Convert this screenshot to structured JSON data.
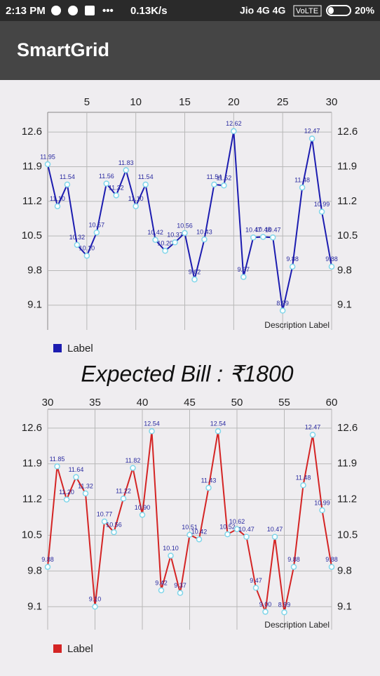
{
  "status_bar": {
    "time": "2:13 PM",
    "speed": "0.13K/s",
    "carrier": "Jio 4G 4G",
    "volte": "VoLTE",
    "battery": "20%"
  },
  "app_bar": {
    "title": "SmartGrid"
  },
  "bill_text": "Expected Bill : ₹1800",
  "chart_data": [
    {
      "type": "line",
      "description": "Description Label",
      "legend": "bottom-left",
      "grid": true,
      "x": [
        1,
        2,
        3,
        4,
        5,
        6,
        7,
        8,
        9,
        10,
        11,
        12,
        13,
        14,
        15,
        16,
        17,
        18,
        19,
        20,
        21,
        22,
        23,
        24,
        25,
        26,
        27,
        28,
        29,
        30
      ],
      "xlim": [
        1,
        30
      ],
      "xticks": [
        5,
        10,
        15,
        20,
        25,
        30
      ],
      "ylim": [
        8.6,
        13.0
      ],
      "yticks": [
        9.1,
        9.8,
        10.5,
        11.2,
        11.9,
        12.6
      ],
      "series": [
        {
          "name": "Label",
          "color": "#1c1cb0",
          "values": [
            11.95,
            11.1,
            11.54,
            10.32,
            10.1,
            10.57,
            11.56,
            11.32,
            11.83,
            11.1,
            11.54,
            10.42,
            10.2,
            10.37,
            10.56,
            9.62,
            10.43,
            11.54,
            11.52,
            12.62,
            9.67,
            10.47,
            10.48,
            10.47,
            8.99,
            9.88,
            11.48,
            12.47,
            10.99,
            9.88
          ],
          "value_labels": [
            "11.95",
            "11.10",
            "11.54",
            "10.32",
            "10.10",
            "10.57",
            "11.56",
            "11.32",
            "11.83",
            "11.10",
            "11.54",
            "10.42",
            "10.20",
            "10.37",
            "10.56",
            "9.62",
            "10.43",
            "11.54",
            "11.52",
            "12.62",
            "9.67",
            "10.47",
            "10.48",
            "10.47",
            "8.99",
            "9.88",
            "11.48",
            "12.47",
            "10.99",
            "9.88"
          ]
        }
      ]
    },
    {
      "type": "line",
      "description": "Description Label",
      "legend": "bottom-left",
      "grid": true,
      "x": [
        30,
        31,
        32,
        33,
        34,
        35,
        36,
        37,
        38,
        39,
        40,
        41,
        42,
        43,
        44,
        45,
        46,
        47,
        48,
        49,
        50,
        51,
        52,
        53,
        54,
        55,
        56,
        57,
        58,
        59,
        60
      ],
      "xlim": [
        30,
        60
      ],
      "xticks": [
        30,
        35,
        40,
        45,
        50,
        55,
        60
      ],
      "ylim": [
        8.65,
        12.97
      ],
      "yticks": [
        9.1,
        9.8,
        10.5,
        11.2,
        11.9,
        12.6
      ],
      "series": [
        {
          "name": "Label",
          "color": "#d42424",
          "values": [
            9.88,
            11.85,
            11.2,
            11.64,
            11.32,
            9.1,
            10.77,
            10.56,
            11.22,
            11.82,
            10.9,
            12.54,
            9.42,
            10.1,
            9.37,
            10.51,
            10.42,
            11.43,
            12.54,
            10.52,
            10.62,
            10.47,
            9.47,
            9.0,
            10.47,
            8.99,
            9.88,
            11.48,
            12.47,
            10.99,
            9.88
          ],
          "value_labels": [
            "9.88",
            "11.85",
            "11.20",
            "11.64",
            "11.32",
            "9.10",
            "10.77",
            "10.56",
            "11.22",
            "11.82",
            "10.90",
            "12.54",
            "9.42",
            "10.10",
            "9.37",
            "10.51",
            "10.42",
            "11.43",
            "12.54",
            "10.52",
            "10.62",
            "10.47",
            "9.47",
            "9.00",
            "10.47",
            "8.99",
            "9.88",
            "11.48",
            "12.47",
            "10.99",
            "9.88"
          ]
        }
      ]
    }
  ]
}
